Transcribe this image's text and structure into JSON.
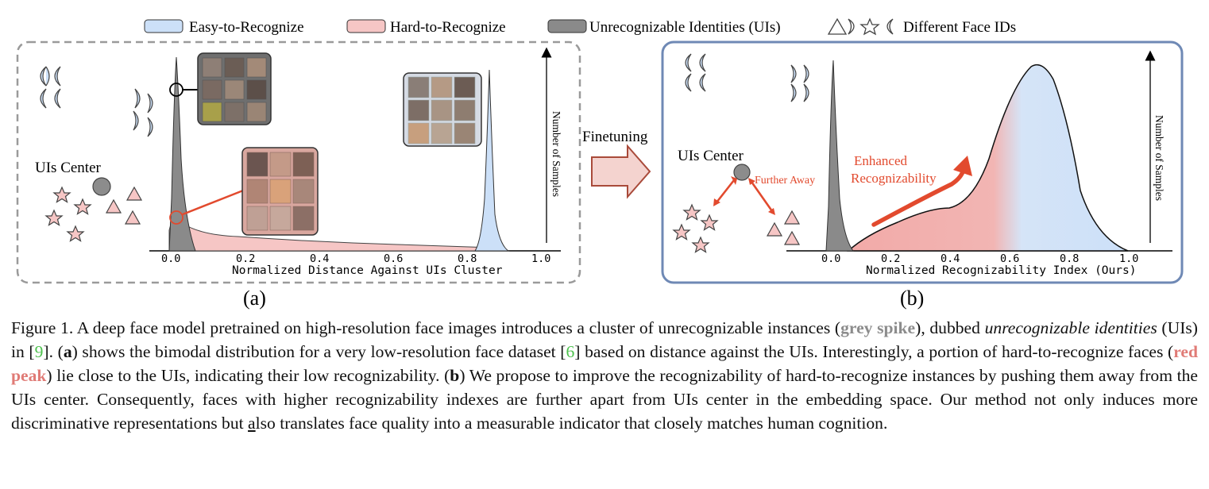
{
  "legend": {
    "easy": "Easy-to-Recognize",
    "hard": "Hard-to-Recognize",
    "unrecognizable": "Unrecognizable Identities (UIs)",
    "face_ids": "Different Face IDs"
  },
  "colors": {
    "easy": "#cce0f8",
    "hard": "#f6c6c5",
    "grey": "#8a8a8a",
    "frame_a": "#9a9a9a",
    "frame_b": "#6f89b5",
    "arrow_red": "#e24a2e",
    "arrow_fill": "#f4d3cf"
  },
  "panel_a": {
    "ui_center_label": "UIs Center",
    "xlabel": "Normalized Distance Against UIs Cluster",
    "ylabel": "Number of Samples",
    "ticks": [
      "0.0",
      "0.2",
      "0.4",
      "0.6",
      "0.8",
      "1.0"
    ],
    "sub_label": "(a)"
  },
  "middle": {
    "finetuning": "Finetuning"
  },
  "panel_b": {
    "ui_center_label": "UIs Center",
    "further_away": "Further Away",
    "enhanced_line1": "Enhanced",
    "enhanced_line2": "Recognizability",
    "xlabel": "Normalized Recognizability Index (Ours)",
    "ylabel": "Number of Samples",
    "ticks": [
      "0.0",
      "0.2",
      "0.4",
      "0.6",
      "0.8",
      "1.0"
    ],
    "sub_label": "(b)"
  },
  "chart_data": [
    {
      "type": "area",
      "title": "",
      "xlabel": "Normalized Distance Against UIs Cluster",
      "ylabel": "Number of Samples",
      "xlim": [
        0.0,
        1.0
      ],
      "x_ticks": [
        0.0,
        0.2,
        0.4,
        0.6,
        0.8,
        1.0
      ],
      "series": [
        {
          "name": "Unrecognizable Identities (UIs)",
          "x": [
            0.0,
            0.005,
            0.01,
            0.02,
            0.03,
            0.04,
            0.05
          ],
          "values": [
            0.1,
            0.6,
            0.95,
            0.55,
            0.25,
            0.08,
            0.0
          ]
        },
        {
          "name": "Hard-to-Recognize",
          "x": [
            0.0,
            0.02,
            0.05,
            0.1,
            0.2,
            0.4,
            0.6,
            0.8
          ],
          "values": [
            0.05,
            0.12,
            0.07,
            0.05,
            0.03,
            0.02,
            0.015,
            0.0
          ]
        },
        {
          "name": "Easy-to-Recognize",
          "x": [
            0.82,
            0.84,
            0.86,
            0.87,
            0.88,
            0.9,
            0.92
          ],
          "values": [
            0.02,
            0.15,
            0.7,
            1.0,
            0.6,
            0.08,
            0.0
          ]
        }
      ]
    },
    {
      "type": "area",
      "title": "",
      "xlabel": "Normalized Recognizability Index (Ours)",
      "ylabel": "Number of Samples",
      "xlim": [
        0.0,
        1.0
      ],
      "x_ticks": [
        0.0,
        0.2,
        0.4,
        0.6,
        0.8,
        1.0
      ],
      "series": [
        {
          "name": "Unrecognizable Identities (UIs)",
          "x": [
            0.0,
            0.005,
            0.01,
            0.02,
            0.04,
            0.06
          ],
          "values": [
            0.05,
            0.9,
            1.0,
            0.55,
            0.15,
            0.0
          ]
        },
        {
          "name": "Hard-to-Recognize",
          "x": [
            0.1,
            0.2,
            0.3,
            0.4,
            0.5
          ],
          "values": [
            0.04,
            0.12,
            0.2,
            0.28,
            0.45
          ]
        },
        {
          "name": "Easy-to-Recognize",
          "x": [
            0.5,
            0.6,
            0.7,
            0.8,
            0.9,
            1.0
          ],
          "values": [
            0.45,
            0.85,
            1.0,
            0.55,
            0.08,
            0.0
          ]
        }
      ]
    }
  ],
  "caption": {
    "fig": "Figure 1.",
    "t1": " A deep face model pretrained on high-resolution face images introduces a cluster of unrecognizable instances (",
    "grey_spike": "grey spike",
    "t2": "), dubbed ",
    "uis_italic": "unrecognizable identities",
    "t3": " (UIs) in [",
    "cite9": "9",
    "t4": "]. (",
    "a_bold": "a",
    "t5": ") shows the bimodal distribution for a very low-resolution face dataset [",
    "cite6": "6",
    "t6": "] based on distance against the UIs. Interestingly, a portion of hard-to-recognize faces (",
    "red_peak": "red peak",
    "t7": ") lie close to the UIs, indicating their low recognizability. (",
    "b_bold": "b",
    "t8": ") We propose to improve the recognizability of hard-to-recognize instances by pushing them away from the UIs center. Consequently, faces with higher recognizability indexes are further apart from UIs center in the embedding space. Our method not only induces more discriminative representations but ",
    "also_a": "a",
    "t9": "lso translates face quality into a measurable indicator that closely matches human cognition."
  }
}
